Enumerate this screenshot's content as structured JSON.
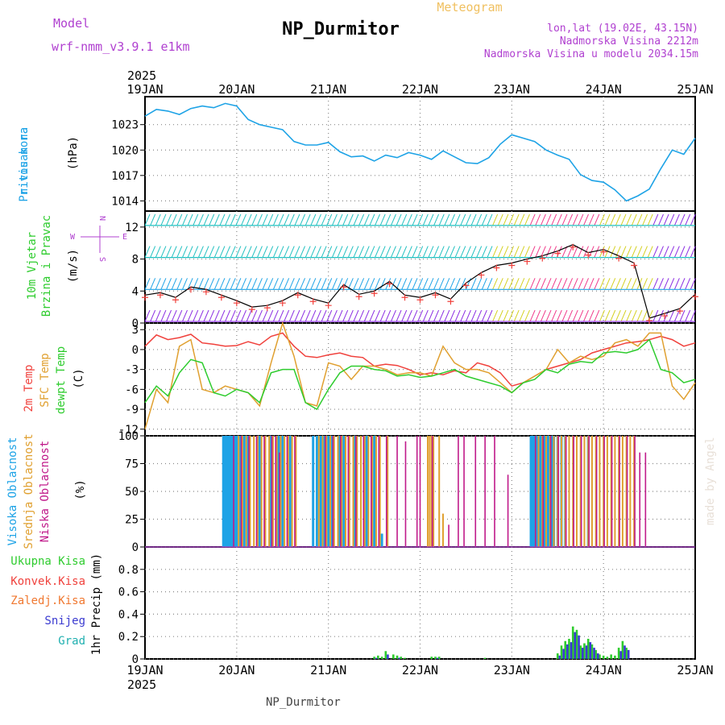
{
  "header": {
    "model_label": "Model",
    "model_name": "wrf-nmm_v3.9.1 e1km",
    "title": "NP_Durmitor",
    "subtitle": "Meteogram",
    "lonlat": "lon,lat (19.02E, 43.15N)",
    "altitude": "Nadmorska Visina 2212m",
    "model_altitude": "Nadmorska Visina u modelu 2034.15m",
    "credit": "made by Angel",
    "footer": "NP_Durmitor"
  },
  "colors": {
    "pressure": "#1ea3e6",
    "t2m": "#f0413c",
    "tsfc": "#e0a030",
    "dewpt": "#2ecc2e",
    "cloud_high": "#1ea3e6",
    "cloud_mid": "#e0a030",
    "cloud_low": "#c01a8a",
    "precip_total": "#2ecc2e",
    "precip_conv": "#f0413c",
    "precip_frz": "#f07830",
    "snow": "#3a3ad0",
    "graupel": "#20b0b0",
    "purple_text": "#b040d0",
    "grid": "#888888"
  },
  "chart_data": [
    {
      "type": "line",
      "panel": "pressure",
      "ylabel_lines": [
        "Pritisak na",
        "nivou mora"
      ],
      "unit": "(hPa)",
      "year": "2025",
      "x_ticks": [
        "19JAN",
        "20JAN",
        "21JAN",
        "22JAN",
        "23JAN",
        "24JAN",
        "25JAN"
      ],
      "xlim_hours": [
        0,
        144
      ],
      "ylim": [
        1012.8,
        1026.3
      ],
      "yticks": [
        1014,
        1017,
        1020,
        1023
      ],
      "grid": true,
      "series": [
        {
          "x": [
            0,
            3,
            6,
            9,
            12,
            15,
            18,
            21,
            24,
            27,
            30,
            33,
            36,
            39,
            42,
            45,
            48,
            51,
            54,
            57,
            60,
            63,
            66,
            69,
            72,
            75,
            78,
            81,
            84,
            87,
            90,
            93,
            96,
            99,
            102,
            105,
            108,
            111,
            114,
            117,
            120,
            123,
            126,
            129,
            132,
            135,
            138,
            141,
            144
          ],
          "values": [
            1024.0,
            1024.8,
            1024.6,
            1024.2,
            1024.9,
            1025.2,
            1025.0,
            1025.5,
            1025.2,
            1023.6,
            1023.0,
            1022.7,
            1022.4,
            1021.0,
            1020.6,
            1020.6,
            1020.9,
            1019.8,
            1019.2,
            1019.3,
            1018.7,
            1019.4,
            1019.1,
            1019.7,
            1019.4,
            1018.9,
            1019.9,
            1019.2,
            1018.5,
            1018.4,
            1019.1,
            1020.7,
            1021.8,
            1021.4,
            1021.0,
            1020.0,
            1019.4,
            1018.9,
            1017.1,
            1016.4,
            1016.2,
            1015.3,
            1014.0,
            1014.6,
            1015.4,
            1017.8,
            1020.0,
            1019.5,
            1021.4
          ]
        }
      ]
    },
    {
      "type": "line",
      "panel": "wind",
      "ylabel_lines": [
        "10m Vjetar",
        "Brzina i Pravac"
      ],
      "unit": "(m/s)",
      "compass": [
        "N",
        "W",
        "E",
        "S"
      ],
      "xlim_hours": [
        0,
        144
      ],
      "ylim": [
        0,
        14
      ],
      "yticks": [
        0,
        4,
        8,
        12
      ],
      "grid": true,
      "series": [
        {
          "name": "wind_speed",
          "x": [
            0,
            4,
            8,
            12,
            16,
            20,
            24,
            28,
            32,
            36,
            40,
            44,
            48,
            52,
            56,
            60,
            64,
            68,
            72,
            76,
            80,
            84,
            88,
            92,
            96,
            100,
            104,
            108,
            112,
            116,
            120,
            124,
            128,
            132,
            136,
            140,
            144
          ],
          "values": [
            3.5,
            3.8,
            3.2,
            4.5,
            4.2,
            3.5,
            2.8,
            2.0,
            2.2,
            2.8,
            3.8,
            3.0,
            2.5,
            4.8,
            3.6,
            4.0,
            5.2,
            3.5,
            3.2,
            3.8,
            3.0,
            5.0,
            6.3,
            7.2,
            7.5,
            8.0,
            8.4,
            9.0,
            9.8,
            8.8,
            9.2,
            8.4,
            7.5,
            0.6,
            1.2,
            1.8,
            3.6
          ]
        }
      ]
    },
    {
      "type": "line",
      "panel": "temperature",
      "ylabel_lines": [
        "2m Temp",
        "SFC Temp",
        "dewpt Temp"
      ],
      "unit": "(C)",
      "xlim_hours": [
        0,
        144
      ],
      "ylim": [
        -13,
        4
      ],
      "yticks": [
        -12,
        -9,
        -6,
        -3,
        0,
        3
      ],
      "grid": true,
      "series": [
        {
          "name": "2m Temp",
          "x": [
            0,
            3,
            6,
            9,
            12,
            15,
            18,
            21,
            24,
            27,
            30,
            33,
            36,
            39,
            42,
            45,
            48,
            51,
            54,
            57,
            60,
            63,
            66,
            69,
            72,
            75,
            78,
            81,
            84,
            87,
            90,
            93,
            96,
            99,
            102,
            105,
            108,
            111,
            114,
            117,
            120,
            123,
            126,
            129,
            132,
            135,
            138,
            141,
            144
          ],
          "values": [
            0.5,
            2.2,
            1.5,
            1.8,
            2.3,
            1.0,
            0.8,
            0.5,
            0.6,
            1.2,
            0.7,
            2.0,
            2.5,
            0.5,
            -1.0,
            -1.2,
            -0.8,
            -0.5,
            -1.0,
            -1.2,
            -2.5,
            -2.2,
            -2.4,
            -3.0,
            -3.8,
            -3.5,
            -3.8,
            -3.2,
            -3.5,
            -2.0,
            -2.5,
            -3.5,
            -5.5,
            -5.0,
            -4.0,
            -3.0,
            -2.5,
            -2.0,
            -1.5,
            -0.5,
            0.0,
            0.5,
            1.0,
            1.2,
            1.5,
            2.0,
            1.5,
            0.5,
            1.0
          ]
        },
        {
          "name": "SFC Temp",
          "x": [
            0,
            3,
            6,
            9,
            12,
            15,
            18,
            21,
            24,
            27,
            30,
            33,
            36,
            39,
            42,
            45,
            48,
            51,
            54,
            57,
            60,
            63,
            66,
            69,
            72,
            75,
            78,
            81,
            84,
            87,
            90,
            93,
            96,
            99,
            102,
            105,
            108,
            111,
            114,
            117,
            120,
            123,
            126,
            129,
            132,
            135,
            138,
            141,
            144
          ],
          "values": [
            -12.0,
            -6.0,
            -8.0,
            0.5,
            1.5,
            -6.0,
            -6.5,
            -5.5,
            -6.0,
            -6.5,
            -8.5,
            -2.0,
            4.0,
            -1.0,
            -8.0,
            -8.5,
            -2.0,
            -2.5,
            -4.5,
            -2.5,
            -2.5,
            -3.0,
            -3.8,
            -3.5,
            -3.5,
            -4.0,
            0.5,
            -2.0,
            -3.0,
            -3.0,
            -3.5,
            -5.0,
            -6.5,
            -5.0,
            -4.0,
            -3.0,
            0.0,
            -2.0,
            -1.0,
            -1.5,
            -1.0,
            1.0,
            1.5,
            0.5,
            2.5,
            2.5,
            -5.5,
            -7.5,
            -5.0
          ]
        },
        {
          "name": "dewpt Temp",
          "x": [
            0,
            3,
            6,
            9,
            12,
            15,
            18,
            21,
            24,
            27,
            30,
            33,
            36,
            39,
            42,
            45,
            48,
            51,
            54,
            57,
            60,
            63,
            66,
            69,
            72,
            75,
            78,
            81,
            84,
            87,
            90,
            93,
            96,
            99,
            102,
            105,
            108,
            111,
            114,
            117,
            120,
            123,
            126,
            129,
            132,
            135,
            138,
            141,
            144
          ],
          "values": [
            -8.0,
            -5.5,
            -7.0,
            -3.5,
            -1.5,
            -2.0,
            -6.5,
            -7.0,
            -6.0,
            -6.5,
            -8.0,
            -3.5,
            -3.0,
            -3.0,
            -8.0,
            -9.0,
            -6.0,
            -3.5,
            -2.5,
            -2.5,
            -3.0,
            -3.2,
            -4.0,
            -3.8,
            -4.2,
            -4.0,
            -3.5,
            -3.0,
            -4.0,
            -4.5,
            -5.0,
            -5.5,
            -6.5,
            -5.0,
            -4.5,
            -3.0,
            -3.5,
            -2.2,
            -1.8,
            -2.0,
            -0.5,
            -0.3,
            -0.5,
            0.0,
            1.5,
            -3.0,
            -3.5,
            -5.0,
            -4.5
          ]
        }
      ]
    },
    {
      "type": "bar",
      "panel": "cloud",
      "ylabel_lines": [
        "Visoka Oblacnost",
        "Srednja Oblacnost",
        "Niska Oblacnost"
      ],
      "unit": "(%)",
      "xlim_hours": [
        0,
        144
      ],
      "ylim": [
        0,
        100
      ],
      "yticks": [
        0,
        25,
        50,
        75,
        100
      ],
      "grid": true,
      "series": [
        {
          "name": "Visoka Oblacnost",
          "x": [
            20.5,
            21.0,
            21.5,
            22.0,
            22.5,
            23.0,
            23.5,
            24.0,
            25.0,
            26.0,
            27.0,
            30.0,
            33.0,
            35.0,
            36.0,
            38.0,
            44.0,
            45.0,
            46.0,
            47.0,
            48.0,
            49.0,
            51.0,
            52.0,
            55.0,
            58.0,
            60.0,
            62.0,
            101.0,
            101.5,
            102.0,
            102.5,
            103.0,
            103.5,
            104.0,
            104.5,
            105.0,
            105.5,
            106.0,
            106.5,
            107.0,
            108.0,
            109.0,
            110.0,
            116.0
          ],
          "values": [
            100,
            100,
            100,
            100,
            100,
            100,
            100,
            100,
            100,
            100,
            100,
            100,
            100,
            100,
            100,
            100,
            100,
            100,
            100,
            100,
            100,
            100,
            100,
            100,
            100,
            100,
            100,
            12,
            100,
            100,
            100,
            100,
            100,
            100,
            100,
            100,
            100,
            100,
            100,
            100,
            100,
            100,
            100,
            100,
            100
          ]
        },
        {
          "name": "Srednja Oblacnost",
          "x": [
            24.5,
            25.5,
            26.5,
            27.5,
            28.5,
            29.5,
            30.5,
            31.5,
            32.5,
            33.5,
            34.5,
            35.5,
            36.5,
            37.5,
            38.5,
            39.5,
            45.5,
            46.5,
            47.5,
            48.5,
            49.5,
            50.5,
            51.5,
            52.5,
            53.5,
            54.5,
            55.5,
            56.5,
            57.5,
            58.5,
            59.5,
            60.5,
            61.5,
            63.5,
            74.0,
            74.5,
            75.0,
            75.5,
            77.0,
            78.0,
            103.0,
            104.0,
            105.0,
            106.0,
            107.0,
            108.0,
            109.0,
            110.0,
            111.0,
            112.0,
            113.0,
            114.0,
            115.0,
            116.0,
            117.0,
            118.0,
            119.0,
            120.0,
            121.0,
            122.0,
            123.0,
            124.0,
            125.0,
            126.0,
            127.0,
            128.0
          ],
          "values": [
            100,
            100,
            100,
            100,
            100,
            100,
            100,
            100,
            100,
            100,
            100,
            100,
            100,
            100,
            100,
            100,
            100,
            100,
            100,
            100,
            100,
            100,
            100,
            100,
            100,
            100,
            100,
            100,
            100,
            100,
            100,
            100,
            100,
            100,
            100,
            100,
            100,
            100,
            100,
            30,
            100,
            100,
            100,
            100,
            100,
            100,
            100,
            100,
            100,
            100,
            100,
            100,
            100,
            100,
            100,
            100,
            100,
            100,
            100,
            100,
            100,
            100,
            100,
            100,
            100,
            100
          ]
        },
        {
          "name": "Niska Oblacnost",
          "x": [
            23.2,
            25.2,
            27.2,
            29.2,
            31.2,
            33.2,
            34.2,
            35.2,
            37.2,
            39.2,
            47.2,
            49.2,
            51.2,
            53.2,
            55.2,
            57.2,
            59.2,
            61.2,
            63.2,
            66.0,
            68.2,
            71.2,
            72.0,
            75.2,
            79.5,
            82.0,
            83.5,
            86.5,
            89.0,
            91.5,
            95.0,
            102.2,
            104.2,
            106.2,
            108.2,
            110.2,
            112.2,
            114.2,
            116.2,
            118.2,
            120.2,
            122.2,
            124.2,
            126.2,
            128.2,
            129.5,
            131.0
          ],
          "values": [
            100,
            100,
            100,
            100,
            100,
            100,
            100,
            85,
            100,
            100,
            100,
            100,
            100,
            100,
            100,
            100,
            100,
            100,
            100,
            100,
            95,
            100,
            100,
            100,
            20,
            100,
            100,
            100,
            100,
            100,
            65,
            100,
            100,
            100,
            100,
            100,
            100,
            100,
            100,
            100,
            100,
            100,
            100,
            100,
            100,
            85,
            85
          ]
        }
      ]
    },
    {
      "type": "bar",
      "panel": "precipitation",
      "legend": [
        "Ukupna Kisa",
        "Konvek.Kisa",
        "Zaledj.Kisa",
        "Snijeg",
        "Grad"
      ],
      "ylabel": "1hr Precip (mm)",
      "x_ticks": [
        "19JAN",
        "20JAN",
        "21JAN",
        "22JAN",
        "23JAN",
        "24JAN",
        "25JAN"
      ],
      "year": "2025",
      "xlim_hours": [
        0,
        144
      ],
      "ylim": [
        0,
        1.0
      ],
      "yticks": [
        0,
        0.2,
        0.4,
        0.6,
        0.8
      ],
      "grid": true,
      "series": [
        {
          "name": "Ukupna Kisa",
          "x": [
            60,
            61,
            62,
            63,
            65,
            66,
            67,
            68,
            75,
            76,
            77,
            89,
            108,
            109,
            110,
            111,
            112,
            113,
            114,
            115,
            116,
            117,
            118,
            119,
            120,
            121,
            122,
            123,
            124,
            125,
            126
          ],
          "values": [
            0.02,
            0.03,
            0.02,
            0.07,
            0.04,
            0.03,
            0.02,
            0.01,
            0.02,
            0.02,
            0.02,
            0.01,
            0.05,
            0.12,
            0.16,
            0.18,
            0.29,
            0.26,
            0.12,
            0.14,
            0.18,
            0.13,
            0.08,
            0.04,
            0.03,
            0.02,
            0.04,
            0.03,
            0.1,
            0.16,
            0.1
          ]
        },
        {
          "name": "Snijeg",
          "x": [
            60,
            63,
            66,
            76,
            108,
            109,
            110,
            111,
            112,
            113,
            114,
            115,
            116,
            117,
            118,
            124,
            125,
            126
          ],
          "values": [
            0.01,
            0.04,
            0.01,
            0.01,
            0.03,
            0.09,
            0.13,
            0.15,
            0.24,
            0.21,
            0.1,
            0.12,
            0.15,
            0.1,
            0.05,
            0.07,
            0.12,
            0.08
          ]
        }
      ]
    }
  ]
}
